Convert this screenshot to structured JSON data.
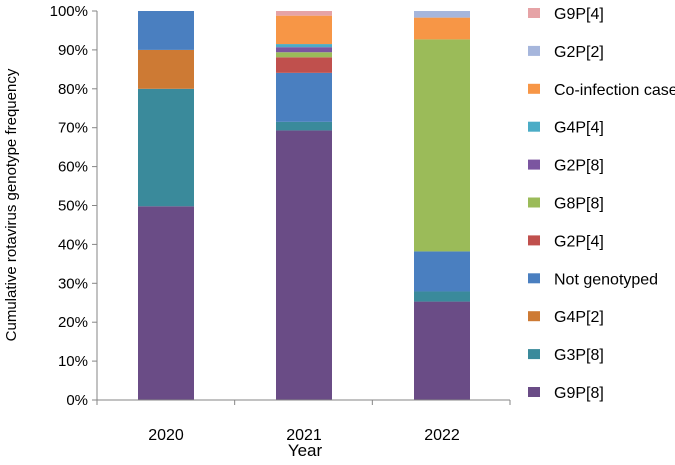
{
  "chart_data": {
    "type": "bar",
    "stacked": true,
    "title": "",
    "xlabel": "Year",
    "ylabel": "Cumulative rotavirus  genotype frequency",
    "ylim": [
      0,
      100
    ],
    "ytick_labels": [
      "0%",
      "10%",
      "20%",
      "30%",
      "40%",
      "50%",
      "60%",
      "70%",
      "80%",
      "90%",
      "100%"
    ],
    "categories": [
      "2020",
      "2021",
      "2022"
    ],
    "legend_position": "right",
    "grid": false,
    "series": [
      {
        "name": "G9P[8]",
        "color": "#6a4c86",
        "values": [
          49.8,
          69.3,
          25.3
        ]
      },
      {
        "name": "G3P[8]",
        "color": "#3a8a9b",
        "values": [
          30.2,
          2.2,
          2.6
        ]
      },
      {
        "name": "G4P[2]",
        "color": "#cd7a34",
        "values": [
          10.0,
          0,
          0
        ]
      },
      {
        "name": "Not genotyped",
        "color": "#4a7fc0",
        "values": [
          10.0,
          12.6,
          10.3
        ]
      },
      {
        "name": "G2P[4]",
        "color": "#c0504d",
        "values": [
          0,
          4.0,
          0
        ]
      },
      {
        "name": "G8P[8]",
        "color": "#9bbb59",
        "values": [
          0,
          1.3,
          54.5
        ]
      },
      {
        "name": "G2P[8]",
        "color": "#7b55a0",
        "values": [
          0,
          1.3,
          0
        ]
      },
      {
        "name": "G4P[4]",
        "color": "#4bacc6",
        "values": [
          0,
          0.8,
          0
        ]
      },
      {
        "name": "Co-infection cases",
        "color": "#f79646",
        "values": [
          0,
          7.3,
          5.6
        ]
      },
      {
        "name": "G2P[2]",
        "color": "#a6b6dc",
        "values": [
          0,
          0,
          1.7
        ]
      },
      {
        "name": "G9P[4]",
        "color": "#e6a3a6",
        "values": [
          0,
          1.2,
          0
        ]
      }
    ]
  }
}
